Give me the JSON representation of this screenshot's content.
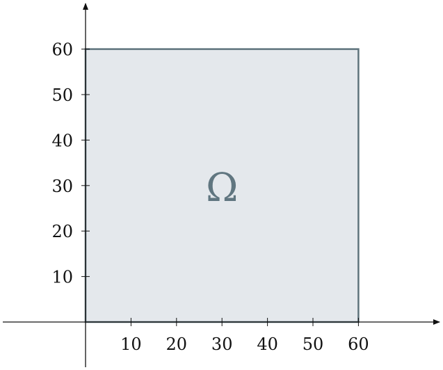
{
  "diagram": {
    "x_ticks": [
      "10",
      "20",
      "30",
      "40",
      "50",
      "60"
    ],
    "y_ticks": [
      "10",
      "20",
      "30",
      "40",
      "50",
      "60"
    ],
    "x_range": [
      0,
      60
    ],
    "y_range": [
      0,
      60
    ],
    "domain_label": "Ω",
    "domain_rect": {
      "x_from": 0,
      "x_to": 60,
      "y_from": 0,
      "y_to": 60
    },
    "domain_label_at": {
      "x": 30,
      "y": 30
    },
    "colors": {
      "axis": "#111111",
      "region_fill": "#e4e8ec",
      "region_stroke": "#5e737c",
      "label": "#607680"
    }
  }
}
